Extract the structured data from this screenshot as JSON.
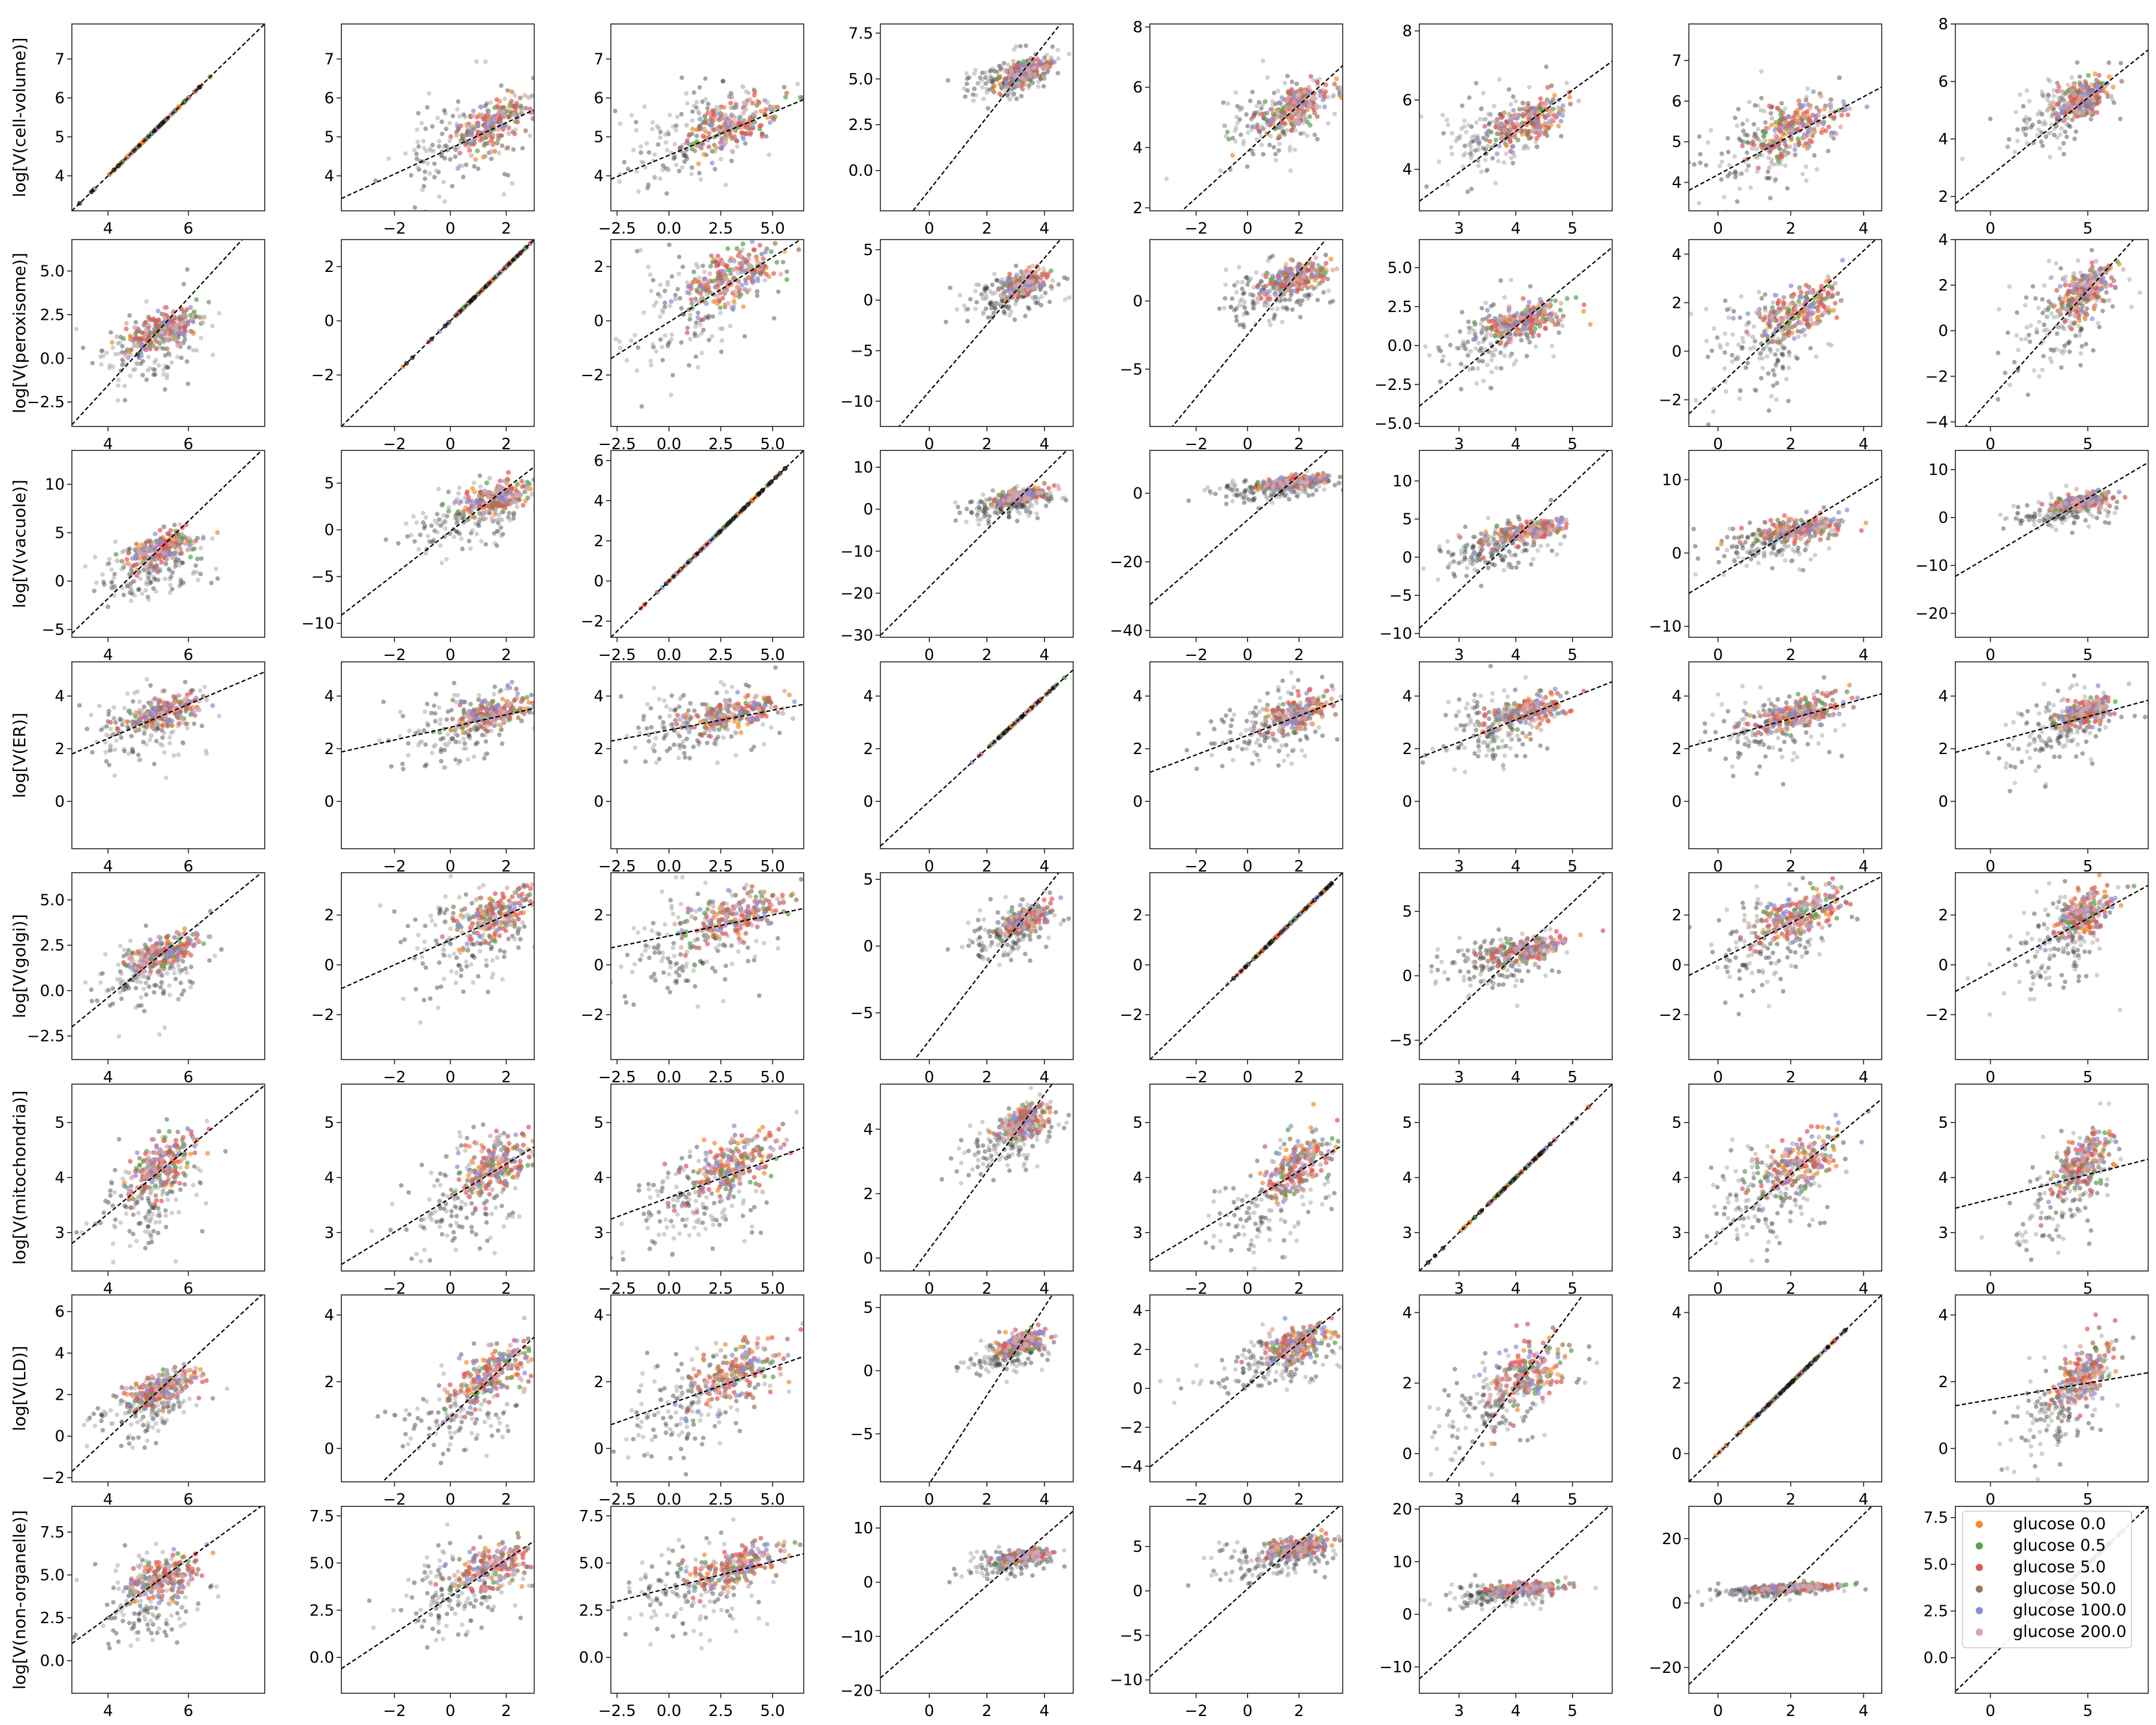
{
  "chart_data": {
    "type": "scatter",
    "layout": "pair-grid",
    "variables": [
      "cell-volume",
      "peroxisome",
      "vacuole",
      "ER",
      "golgi",
      "mitochondria",
      "LD",
      "non-organelle"
    ],
    "xlabels": [
      "log[V(cell-volume)]",
      "log[V(peroxisome)]",
      "log[V(vacuole)]",
      "log[V(ER)]",
      "log[V(golgi)]",
      "log[V(mitochondria)]",
      "log[V(LD)]",
      "log[V(non-organelle)]"
    ],
    "ylabels": [
      "log[V(cell-volume)]",
      "log[V(peroxisome)]",
      "log[V(vacuole)]",
      "log[V(ER)]",
      "log[V(golgi)]",
      "log[V(mitochondria)]",
      "log[V(LD)]",
      "log[V(non-organelle)]"
    ],
    "xlim": [
      [
        3.1,
        7.9
      ],
      [
        -3.9,
        3.0
      ],
      [
        -2.8,
        6.5
      ],
      [
        -1.7,
        5.0
      ],
      [
        -3.8,
        3.7
      ],
      [
        2.3,
        5.7
      ],
      [
        -0.8,
        4.5
      ],
      [
        -1.8,
        8.1
      ]
    ],
    "xticks": [
      [
        4,
        6
      ],
      [
        -2,
        0,
        2
      ],
      [
        -2.5,
        0.0,
        2.5,
        5.0
      ],
      [
        0,
        2,
        4
      ],
      [
        -2,
        0,
        2
      ],
      [
        3,
        4,
        5
      ],
      [
        0,
        2,
        4
      ],
      [
        0,
        5
      ]
    ],
    "xtick_labels": [
      [
        "4",
        "6"
      ],
      [
        "−2",
        "0",
        "2"
      ],
      [
        "−2.5",
        "0.0",
        "2.5",
        "5.0"
      ],
      [
        "0",
        "2",
        "4"
      ],
      [
        "−2",
        "0",
        "2"
      ],
      [
        "3",
        "4",
        "5"
      ],
      [
        "0",
        "2",
        "4"
      ],
      [
        "0",
        "5"
      ]
    ],
    "rows": [
      {
        "ylim": [
          [
            3.1,
            7.9
          ],
          [
            3.1,
            7.9
          ],
          [
            3.1,
            7.9
          ],
          [
            -2.2,
            8.0
          ],
          [
            1.9,
            8.1
          ],
          [
            2.8,
            8.2
          ],
          [
            3.3,
            7.9
          ],
          [
            1.5,
            8.0
          ]
        ],
        "yticks": [
          [
            4,
            5,
            6,
            7
          ],
          [
            4,
            5,
            6,
            7
          ],
          [
            4,
            5,
            6,
            7
          ],
          [
            0.0,
            2.5,
            5.0,
            7.5
          ],
          [
            2,
            4,
            6,
            8
          ],
          [
            4,
            6,
            8
          ],
          [
            4,
            5,
            6,
            7
          ],
          [
            2,
            4,
            6,
            8
          ]
        ],
        "ytick_labels": [
          [
            "4",
            "5",
            "6",
            "7"
          ],
          [
            "4",
            "5",
            "6",
            "7"
          ],
          [
            "4",
            "5",
            "6",
            "7"
          ],
          [
            "0.0",
            "2.5",
            "5.0",
            "7.5"
          ],
          [
            "2",
            "4",
            "6",
            "8"
          ],
          [
            "4",
            "6",
            "8"
          ],
          [
            "4",
            "5",
            "6",
            "7"
          ],
          [
            "2",
            "4",
            "6",
            "8"
          ]
        ],
        "fit_slope": [
          1.0,
          0.33,
          0.22,
          1.99,
          0.77,
          1.19,
          0.48,
          0.54
        ]
      },
      {
        "ylim": [
          [
            -3.9,
            6.8
          ],
          [
            -3.9,
            3.0
          ],
          [
            -3.9,
            3.0
          ],
          [
            -12.5,
            6.0
          ],
          [
            -9.2,
            4.5
          ],
          [
            -5.2,
            6.8
          ],
          [
            -3.1,
            4.6
          ],
          [
            -4.2,
            4.0
          ]
        ],
        "yticks": [
          [
            -2.5,
            0.0,
            2.5,
            5.0
          ],
          [
            -2,
            0,
            2
          ],
          [
            -2,
            0,
            2
          ],
          [
            -10,
            -5,
            0,
            5
          ],
          [
            -5,
            0
          ],
          [
            -5.0,
            -2.5,
            0.0,
            2.5,
            5.0
          ],
          [
            -2,
            0,
            2,
            4
          ],
          [
            -4,
            -2,
            0,
            2,
            4
          ]
        ],
        "ytick_labels": [
          [
            "−2.5",
            "0.0",
            "2.5",
            "5.0"
          ],
          [
            "−2",
            "0",
            "2"
          ],
          [
            "−2",
            "0",
            "2"
          ],
          [
            "−10",
            "−5",
            "0",
            "5"
          ],
          [
            "−5",
            "0"
          ],
          [
            "−5.0",
            "−2.5",
            "0.0",
            "2.5",
            "5.0"
          ],
          [
            "−2",
            "0",
            "2",
            "4"
          ],
          [
            "−4",
            "−2",
            "0",
            "2",
            "4"
          ]
        ],
        "fit_slope": [
          2.5,
          1.0,
          0.48,
          3.3,
          2.3,
          3.0,
          1.4,
          0.95
        ]
      },
      {
        "ylim": [
          [
            -5.8,
            13.5
          ],
          [
            -11.5,
            8.5
          ],
          [
            -2.8,
            6.5
          ],
          [
            -30.5,
            14.0
          ],
          [
            -42.0,
            12.5
          ],
          [
            -10.5,
            14.0
          ],
          [
            -11.5,
            14.0
          ],
          [
            -25.0,
            14.0
          ]
        ],
        "yticks": [
          [
            -5,
            0,
            5,
            10
          ],
          [
            -10,
            -5,
            0,
            5
          ],
          [
            -2,
            0,
            2,
            4,
            6
          ],
          [
            -30,
            -20,
            -10,
            0,
            10
          ],
          [
            -40,
            -20,
            0
          ],
          [
            -10,
            -5,
            0,
            5,
            10
          ],
          [
            -10,
            0,
            10
          ],
          [
            -20,
            -10,
            0,
            10
          ]
        ],
        "ytick_labels": [
          [
            "−5",
            "0",
            "5",
            "10"
          ],
          [
            "−10",
            "−5",
            "0",
            "5"
          ],
          [
            "−2",
            "0",
            "2",
            "4",
            "6"
          ],
          [
            "−30",
            "−20",
            "−10",
            "0",
            "10"
          ],
          [
            "−40",
            "−20",
            "0"
          ],
          [
            "−10",
            "−5",
            "0",
            "5",
            "10"
          ],
          [
            "−10",
            "0",
            "10"
          ],
          [
            "−20",
            "−10",
            "0",
            "10"
          ]
        ],
        "fit_slope": [
          4.0,
          2.3,
          1.0,
          6.8,
          6.5,
          7.0,
          3.0,
          2.4
        ]
      },
      {
        "ylim": [
          [
            -1.8,
            5.3
          ],
          [
            -1.8,
            5.3
          ],
          [
            -1.8,
            5.3
          ],
          [
            -1.8,
            5.3
          ],
          [
            -1.8,
            5.3
          ],
          [
            -1.8,
            5.3
          ],
          [
            -1.8,
            5.3
          ],
          [
            -1.8,
            5.3
          ]
        ],
        "yticks": [
          [
            0,
            2,
            4
          ],
          [
            0,
            2,
            4
          ],
          [
            0,
            2,
            4
          ],
          [
            0,
            2,
            4
          ],
          [
            0,
            2,
            4
          ],
          [
            0,
            2,
            4
          ],
          [
            0,
            2,
            4
          ],
          [
            0,
            2,
            4
          ]
        ],
        "ytick_labels": [
          [
            "0",
            "2",
            "4"
          ],
          [
            "0",
            "2",
            "4"
          ],
          [
            "0",
            "2",
            "4"
          ],
          [
            "0",
            "2",
            "4"
          ],
          [
            "0",
            "2",
            "4"
          ],
          [
            "0",
            "2",
            "4"
          ],
          [
            "0",
            "2",
            "4"
          ],
          [
            "0",
            "2",
            "4"
          ]
        ],
        "fit_slope": [
          0.65,
          0.24,
          0.15,
          1.0,
          0.37,
          0.85,
          0.38,
          0.2
        ]
      },
      {
        "ylim": [
          [
            -3.8,
            6.5
          ],
          [
            -3.8,
            3.7
          ],
          [
            -3.8,
            3.7
          ],
          [
            -8.5,
            5.5
          ],
          [
            -3.8,
            3.7
          ],
          [
            -6.5,
            8.0
          ],
          [
            -3.8,
            3.7
          ],
          [
            -3.8,
            3.7
          ]
        ],
        "yticks": [
          [
            -2.5,
            0.0,
            2.5,
            5.0
          ],
          [
            -2,
            0,
            2
          ],
          [
            -2,
            0,
            2
          ],
          [
            -5,
            0,
            5
          ],
          [
            -2,
            0,
            2
          ],
          [
            -5,
            0,
            5
          ],
          [
            -2,
            0,
            2
          ],
          [
            -2,
            0,
            2
          ]
        ],
        "ytick_labels": [
          [
            "−2.5",
            "0.0",
            "2.5",
            "5.0"
          ],
          [
            "−2",
            "0",
            "2"
          ],
          [
            "−2",
            "0",
            "2"
          ],
          [
            "−5",
            "0",
            "5"
          ],
          [
            "−2",
            "0",
            "2"
          ],
          [
            "−5",
            "0",
            "5"
          ],
          [
            "−2",
            "0",
            "2"
          ],
          [
            "−2",
            "0",
            "2"
          ]
        ],
        "fit_slope": [
          1.8,
          0.5,
          0.17,
          2.8,
          1.0,
          4.1,
          0.75,
          0.43
        ]
      },
      {
        "ylim": [
          [
            2.3,
            5.7
          ],
          [
            2.3,
            5.7
          ],
          [
            2.3,
            5.7
          ],
          [
            -0.4,
            5.4
          ],
          [
            2.3,
            5.7
          ],
          [
            2.3,
            5.7
          ],
          [
            2.3,
            5.7
          ],
          [
            2.3,
            5.7
          ]
        ],
        "yticks": [
          [
            3,
            4,
            5
          ],
          [
            3,
            4,
            5
          ],
          [
            3,
            4,
            5
          ],
          [
            0,
            2,
            4
          ],
          [
            3,
            4,
            5
          ],
          [
            3,
            4,
            5
          ],
          [
            3,
            4,
            5
          ],
          [
            3,
            4,
            5
          ]
        ],
        "ytick_labels": [
          [
            "3",
            "4",
            "5"
          ],
          [
            "3",
            "4",
            "5"
          ],
          [
            "3",
            "4",
            "5"
          ],
          [
            "0",
            "2",
            "4"
          ],
          [
            "3",
            "4",
            "5"
          ],
          [
            "3",
            "4",
            "5"
          ],
          [
            "3",
            "4",
            "5"
          ],
          [
            "3",
            "4",
            "5"
          ]
        ],
        "fit_slope": [
          0.6,
          0.31,
          0.14,
          1.2,
          0.28,
          1.0,
          0.55,
          0.09
        ]
      },
      {
        "ylim": [
          [
            -2.2,
            6.8
          ],
          [
            -1.0,
            4.6
          ],
          [
            -1.0,
            4.6
          ],
          [
            -8.8,
            6.0
          ],
          [
            -4.8,
            4.8
          ],
          [
            -0.8,
            4.5
          ],
          [
            -0.8,
            4.5
          ],
          [
            -1.0,
            4.6
          ]
        ],
        "yticks": [
          [
            -2,
            0,
            2,
            4,
            6
          ],
          [
            0,
            2,
            4
          ],
          [
            0,
            2,
            4
          ],
          [
            -5,
            0,
            5
          ],
          [
            -4,
            -2,
            0,
            2,
            4
          ],
          [
            0,
            2,
            4
          ],
          [
            0,
            2,
            4
          ],
          [
            0,
            2,
            4
          ]
        ],
        "ytick_labels": [
          [
            "−2",
            "0",
            "2",
            "4",
            "6"
          ],
          [
            "0",
            "2",
            "4"
          ],
          [
            "0",
            "2",
            "4"
          ],
          [
            "−5",
            "0",
            "5"
          ],
          [
            "−4",
            "−2",
            "0",
            "2",
            "4"
          ],
          [
            "0",
            "2",
            "4"
          ],
          [
            "0",
            "2",
            "4"
          ],
          [
            "0",
            "2",
            "4"
          ]
        ],
        "fit_slope": [
          1.8,
          0.8,
          0.22,
          3.5,
          1.1,
          2.2,
          1.0,
          0.1
        ]
      },
      {
        "ylim": [
          [
            -1.9,
            9.0
          ],
          [
            -1.9,
            8.0
          ],
          [
            -1.9,
            8.0
          ],
          [
            -20.5,
            14.0
          ],
          [
            -11.5,
            9.5
          ],
          [
            -15.0,
            20.5
          ],
          [
            -28.0,
            30.0
          ],
          [
            -1.9,
            8.1
          ]
        ],
        "yticks": [
          [
            0.0,
            2.5,
            5.0,
            7.5
          ],
          [
            0.0,
            2.5,
            5.0,
            7.5
          ],
          [
            0.0,
            2.5,
            5.0,
            7.5
          ],
          [
            -20,
            -10,
            0,
            10
          ],
          [
            -10,
            -5,
            0,
            5
          ],
          [
            -10,
            0,
            10,
            20
          ],
          [
            -20,
            0,
            20
          ],
          [
            0.0,
            2.5,
            5.0,
            7.5
          ]
        ],
        "ytick_labels": [
          [
            "0.0",
            "2.5",
            "5.0",
            "7.5"
          ],
          [
            "0.0",
            "2.5",
            "5.0",
            "7.5"
          ],
          [
            "0.0",
            "2.5",
            "5.0",
            "7.5"
          ],
          [
            "−20",
            "−10",
            "0",
            "10"
          ],
          [
            "−10",
            "−5",
            "0",
            "5"
          ],
          [
            "−10",
            "0",
            "10",
            "20"
          ],
          [
            "−20",
            "0",
            "20"
          ],
          [
            "0.0",
            "2.5",
            "5.0",
            "7.5"
          ]
        ],
        "fit_slope": [
          1.7,
          0.98,
          0.28,
          4.6,
          2.6,
          9.8,
          11.0,
          1.0
        ]
      }
    ],
    "series": [
      {
        "name": "glucose 0.0",
        "color": "#f28e2b"
      },
      {
        "name": "glucose 0.5",
        "color": "#59a14f"
      },
      {
        "name": "glucose 5.0",
        "color": "#e15759"
      },
      {
        "name": "glucose 50.0",
        "color": "#9c755f"
      },
      {
        "name": "glucose 100.0",
        "color": "#8a8fd8"
      },
      {
        "name": "glucose 200.0",
        "color": "#d4a6a6"
      }
    ],
    "background_color": "#555555",
    "fit_line": "dashed black",
    "legend_position": "bottom-right panel"
  }
}
